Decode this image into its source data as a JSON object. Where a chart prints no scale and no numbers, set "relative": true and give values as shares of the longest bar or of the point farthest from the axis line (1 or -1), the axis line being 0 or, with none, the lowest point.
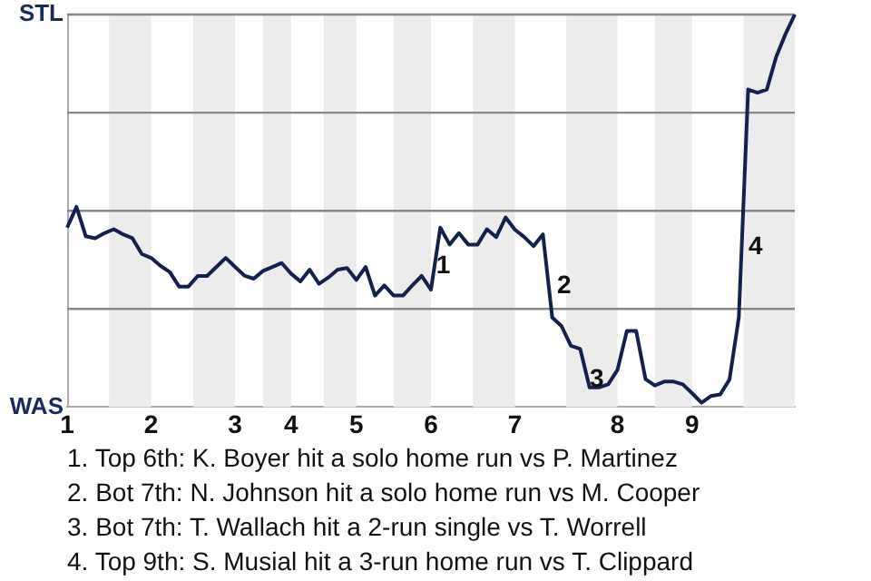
{
  "chart_data": {
    "type": "line",
    "relative": true,
    "categories": [
      "1",
      null,
      null,
      null,
      null,
      null,
      null,
      null,
      null,
      "2",
      null,
      null,
      null,
      null,
      null,
      null,
      null,
      null,
      "3",
      null,
      null,
      null,
      null,
      null,
      "4",
      null,
      null,
      null,
      null,
      null,
      null,
      "5",
      null,
      null,
      null,
      null,
      null,
      null,
      null,
      "6",
      null,
      null,
      null,
      null,
      null,
      null,
      null,
      null,
      "7",
      null,
      null,
      null,
      null,
      null,
      null,
      null,
      null,
      null,
      null,
      "8",
      null,
      null,
      null,
      null,
      null,
      null,
      null,
      "9",
      null,
      null,
      null,
      null,
      null,
      null,
      null,
      null,
      null,
      null,
      null
    ],
    "series": [
      {
        "color": "#14214d",
        "values": [
          0.457,
          0.51,
          0.435,
          0.43,
          0.443,
          0.453,
          0.44,
          0.43,
          0.39,
          0.38,
          0.36,
          0.344,
          0.307,
          0.307,
          0.334,
          0.334,
          0.357,
          0.38,
          0.357,
          0.335,
          0.327,
          0.347,
          0.357,
          0.367,
          0.34,
          0.32,
          0.35,
          0.314,
          0.33,
          0.35,
          0.354,
          0.324,
          0.357,
          0.284,
          0.31,
          0.284,
          0.284,
          0.31,
          0.334,
          0.299,
          0.457,
          0.414,
          0.443,
          0.414,
          0.414,
          0.453,
          0.433,
          0.483,
          0.452,
          0.433,
          0.41,
          0.44,
          0.228,
          0.206,
          0.156,
          0.148,
          0.05,
          0.05,
          0.058,
          0.095,
          0.194,
          0.194,
          0.071,
          0.055,
          0.065,
          0.065,
          0.058,
          0.035,
          0.011,
          0.028,
          0.032,
          0.07,
          0.228,
          0.809,
          0.801,
          0.809,
          0.892,
          0.95,
          1
        ]
      }
    ],
    "marker": "none",
    "line_style": "solid",
    "ref_lines": [
      {
        "axis": "y",
        "value": 0.25,
        "color": "#888888"
      },
      {
        "axis": "y",
        "value": 0.5,
        "color": "#888888"
      },
      {
        "axis": "y",
        "value": 0.75,
        "color": "#888888"
      },
      {
        "axis": "y",
        "value": 1,
        "color": "#888888"
      }
    ],
    "annotations": [
      "STL",
      "WAS",
      "1",
      "2",
      "3",
      "4",
      "1. Top 6th: K. Boyer hit a solo home run vs P. Martinez",
      "2. Bot 7th: N. Johnson hit a solo home run vs M. Cooper",
      "3. Bot 7th: T. Wallach hit a 2-run single vs T. Worrell",
      "4. Top 9th: S. Musial hit a 3-run home run vs T. Clippard"
    ]
  }
}
